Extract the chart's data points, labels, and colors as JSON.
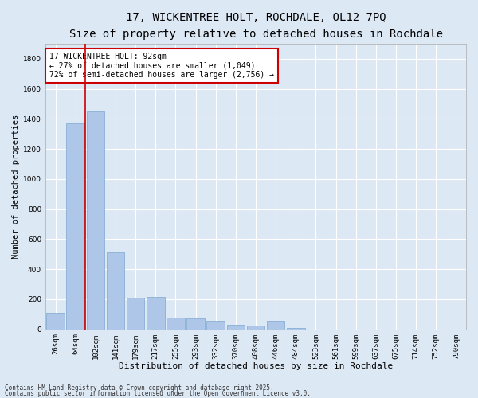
{
  "title": "17, WICKENTREE HOLT, ROCHDALE, OL12 7PQ",
  "subtitle": "Size of property relative to detached houses in Rochdale",
  "xlabel": "Distribution of detached houses by size in Rochdale",
  "ylabel": "Number of detached properties",
  "categories": [
    "26sqm",
    "64sqm",
    "102sqm",
    "141sqm",
    "179sqm",
    "217sqm",
    "255sqm",
    "293sqm",
    "332sqm",
    "370sqm",
    "408sqm",
    "446sqm",
    "484sqm",
    "523sqm",
    "561sqm",
    "599sqm",
    "637sqm",
    "675sqm",
    "714sqm",
    "752sqm",
    "790sqm"
  ],
  "values": [
    110,
    1370,
    1450,
    510,
    210,
    215,
    80,
    75,
    55,
    30,
    25,
    55,
    10,
    0,
    0,
    0,
    0,
    0,
    0,
    0,
    0
  ],
  "bar_color": "#aec6e8",
  "bar_edgecolor": "#7aa8d0",
  "vline_color": "#cc0000",
  "ylim": [
    0,
    1900
  ],
  "yticks": [
    0,
    200,
    400,
    600,
    800,
    1000,
    1200,
    1400,
    1600,
    1800
  ],
  "annotation_title": "17 WICKENTREE HOLT: 92sqm",
  "annotation_line1": "← 27% of detached houses are smaller (1,049)",
  "annotation_line2": "72% of semi-detached houses are larger (2,756) →",
  "annotation_box_facecolor": "#ffffff",
  "annotation_box_edgecolor": "#cc0000",
  "background_color": "#dde8f5",
  "fig_background_color": "#dde8f5",
  "grid_color": "#ffffff",
  "spine_color": "#aaaaaa",
  "footer1": "Contains HM Land Registry data © Crown copyright and database right 2025.",
  "footer2": "Contains public sector information licensed under the Open Government Licence v3.0.",
  "title_fontsize": 10,
  "subtitle_fontsize": 8.5,
  "tick_fontsize": 6.5,
  "ylabel_fontsize": 7.5,
  "xlabel_fontsize": 8,
  "annotation_fontsize": 7,
  "footer_fontsize": 5.5
}
